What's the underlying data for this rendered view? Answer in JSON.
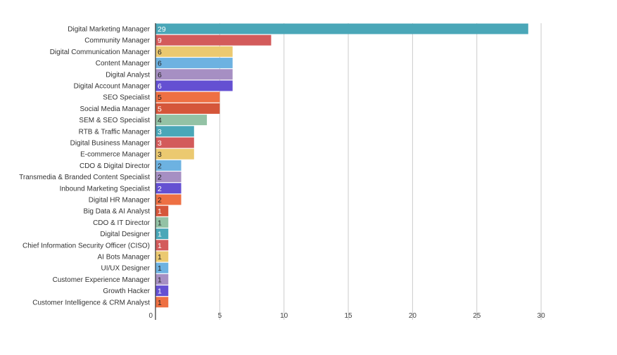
{
  "chart_data": {
    "type": "bar",
    "orientation": "horizontal",
    "title": "",
    "xlabel": "",
    "ylabel": "",
    "xlim": [
      0,
      30
    ],
    "xticks": [
      0,
      5,
      10,
      15,
      20,
      25,
      30
    ],
    "grid": true,
    "data_labels": true,
    "categories": [
      "Digital Marketing Manager",
      "Community Manager",
      "Digital Communication Manager",
      "Content Manager",
      "Digital Analyst",
      "Digital Account Manager",
      "SEO Specialist",
      "Social Media Manager",
      "SEM & SEO Specialist",
      "RTB & Traffic Manager",
      "Digital Business Manager",
      "E-commerce Manager",
      "CDO & Digital Director",
      "Transmedia & Branded Content Specialist",
      "Inbound Marketing Specialist",
      "Digital HR Manager",
      "Big Data & AI Analyst",
      "CDO & IT Director",
      "Digital Designer",
      "Chief Information Security Officer (CISO)",
      "AI Bots Manager",
      "UI/UX Designer",
      "Customer Experience Manager",
      "Growth Hacker",
      "Customer Intelligence & CRM Analyst"
    ],
    "values": [
      29,
      9,
      6,
      6,
      6,
      6,
      5,
      5,
      4,
      3,
      3,
      3,
      2,
      2,
      2,
      2,
      1,
      1,
      1,
      1,
      1,
      1,
      1,
      1,
      1
    ],
    "colors": [
      "#4aa7b8",
      "#d35b5b",
      "#ebc970",
      "#6db2e1",
      "#a68fc3",
      "#6450d2",
      "#ee7043",
      "#d5563a",
      "#93c2a5"
    ],
    "label_colors": [
      "#ffffff",
      "#ffffff",
      "#222222",
      "#222222",
      "#222222",
      "#ffffff",
      "#222222",
      "#ffffff",
      "#222222"
    ]
  }
}
